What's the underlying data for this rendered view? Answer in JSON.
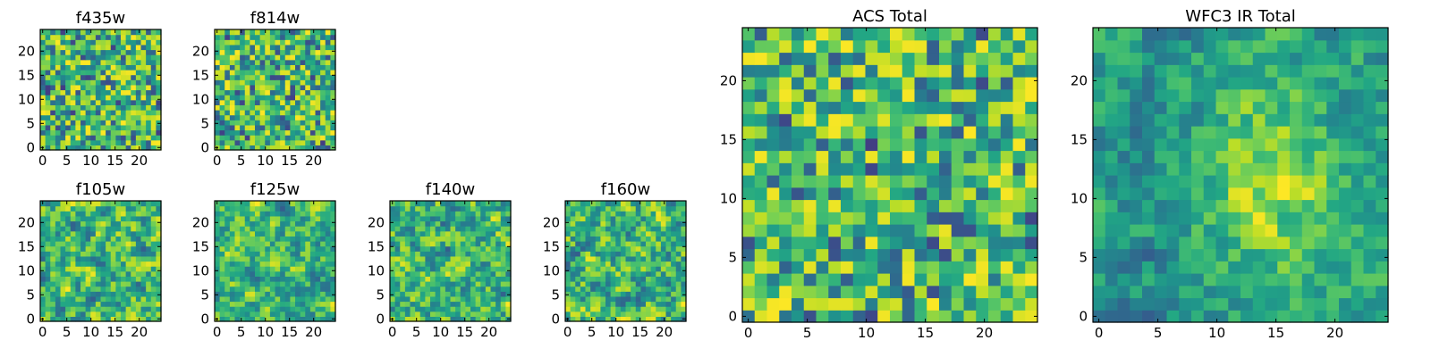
{
  "chart_data": [
    {
      "type": "heatmap",
      "title": "f435w",
      "xlim": [
        0,
        24
      ],
      "ylim": [
        0,
        24
      ],
      "xticks": [
        "0",
        "5",
        "10",
        "15",
        "20"
      ],
      "yticks": [
        "0",
        "5",
        "10",
        "15",
        "20"
      ],
      "grid_size": [
        24,
        24
      ],
      "colormap": "viridis",
      "texture": "noisy"
    },
    {
      "type": "heatmap",
      "title": "f814w",
      "xlim": [
        0,
        24
      ],
      "ylim": [
        0,
        24
      ],
      "xticks": [
        "0",
        "5",
        "10",
        "15",
        "20"
      ],
      "yticks": [
        "0",
        "5",
        "10",
        "15",
        "20"
      ],
      "grid_size": [
        24,
        24
      ],
      "colormap": "viridis",
      "texture": "noisy"
    },
    {
      "type": "heatmap",
      "title": "f105w",
      "xlim": [
        0,
        24
      ],
      "ylim": [
        0,
        24
      ],
      "xticks": [
        "0",
        "5",
        "10",
        "15",
        "20"
      ],
      "yticks": [
        "0",
        "5",
        "10",
        "15",
        "20"
      ],
      "grid_size": [
        24,
        24
      ],
      "colormap": "viridis",
      "texture": "smooth"
    },
    {
      "type": "heatmap",
      "title": "f125w",
      "xlim": [
        0,
        24
      ],
      "ylim": [
        0,
        24
      ],
      "xticks": [
        "0",
        "5",
        "10",
        "15",
        "20"
      ],
      "yticks": [
        "0",
        "5",
        "10",
        "15",
        "20"
      ],
      "grid_size": [
        24,
        24
      ],
      "colormap": "viridis",
      "texture": "smooth"
    },
    {
      "type": "heatmap",
      "title": "f140w",
      "xlim": [
        0,
        24
      ],
      "ylim": [
        0,
        24
      ],
      "xticks": [
        "0",
        "5",
        "10",
        "15",
        "20"
      ],
      "yticks": [
        "0",
        "5",
        "10",
        "15",
        "20"
      ],
      "grid_size": [
        24,
        24
      ],
      "colormap": "viridis",
      "texture": "smooth"
    },
    {
      "type": "heatmap",
      "title": "f160w",
      "xlim": [
        0,
        24
      ],
      "ylim": [
        0,
        24
      ],
      "xticks": [
        "0",
        "5",
        "10",
        "15",
        "20"
      ],
      "yticks": [
        "0",
        "5",
        "10",
        "15",
        "20"
      ],
      "grid_size": [
        24,
        24
      ],
      "colormap": "viridis",
      "texture": "smooth"
    },
    {
      "type": "heatmap",
      "title": "ACS Total",
      "xlim": [
        0,
        24
      ],
      "ylim": [
        0,
        24
      ],
      "xticks": [
        "0",
        "5",
        "10",
        "15",
        "20"
      ],
      "yticks": [
        "0",
        "5",
        "10",
        "15",
        "20"
      ],
      "grid_size": [
        24,
        24
      ],
      "colormap": "viridis",
      "texture": "noisy"
    },
    {
      "type": "heatmap",
      "title": "WFC3 IR Total",
      "xlim": [
        0,
        24
      ],
      "ylim": [
        0,
        24
      ],
      "xticks": [
        "0",
        "5",
        "10",
        "15",
        "20"
      ],
      "yticks": [
        "0",
        "5",
        "10",
        "15",
        "20"
      ],
      "grid_size": [
        24,
        24
      ],
      "colormap": "viridis",
      "texture": "blob"
    }
  ]
}
